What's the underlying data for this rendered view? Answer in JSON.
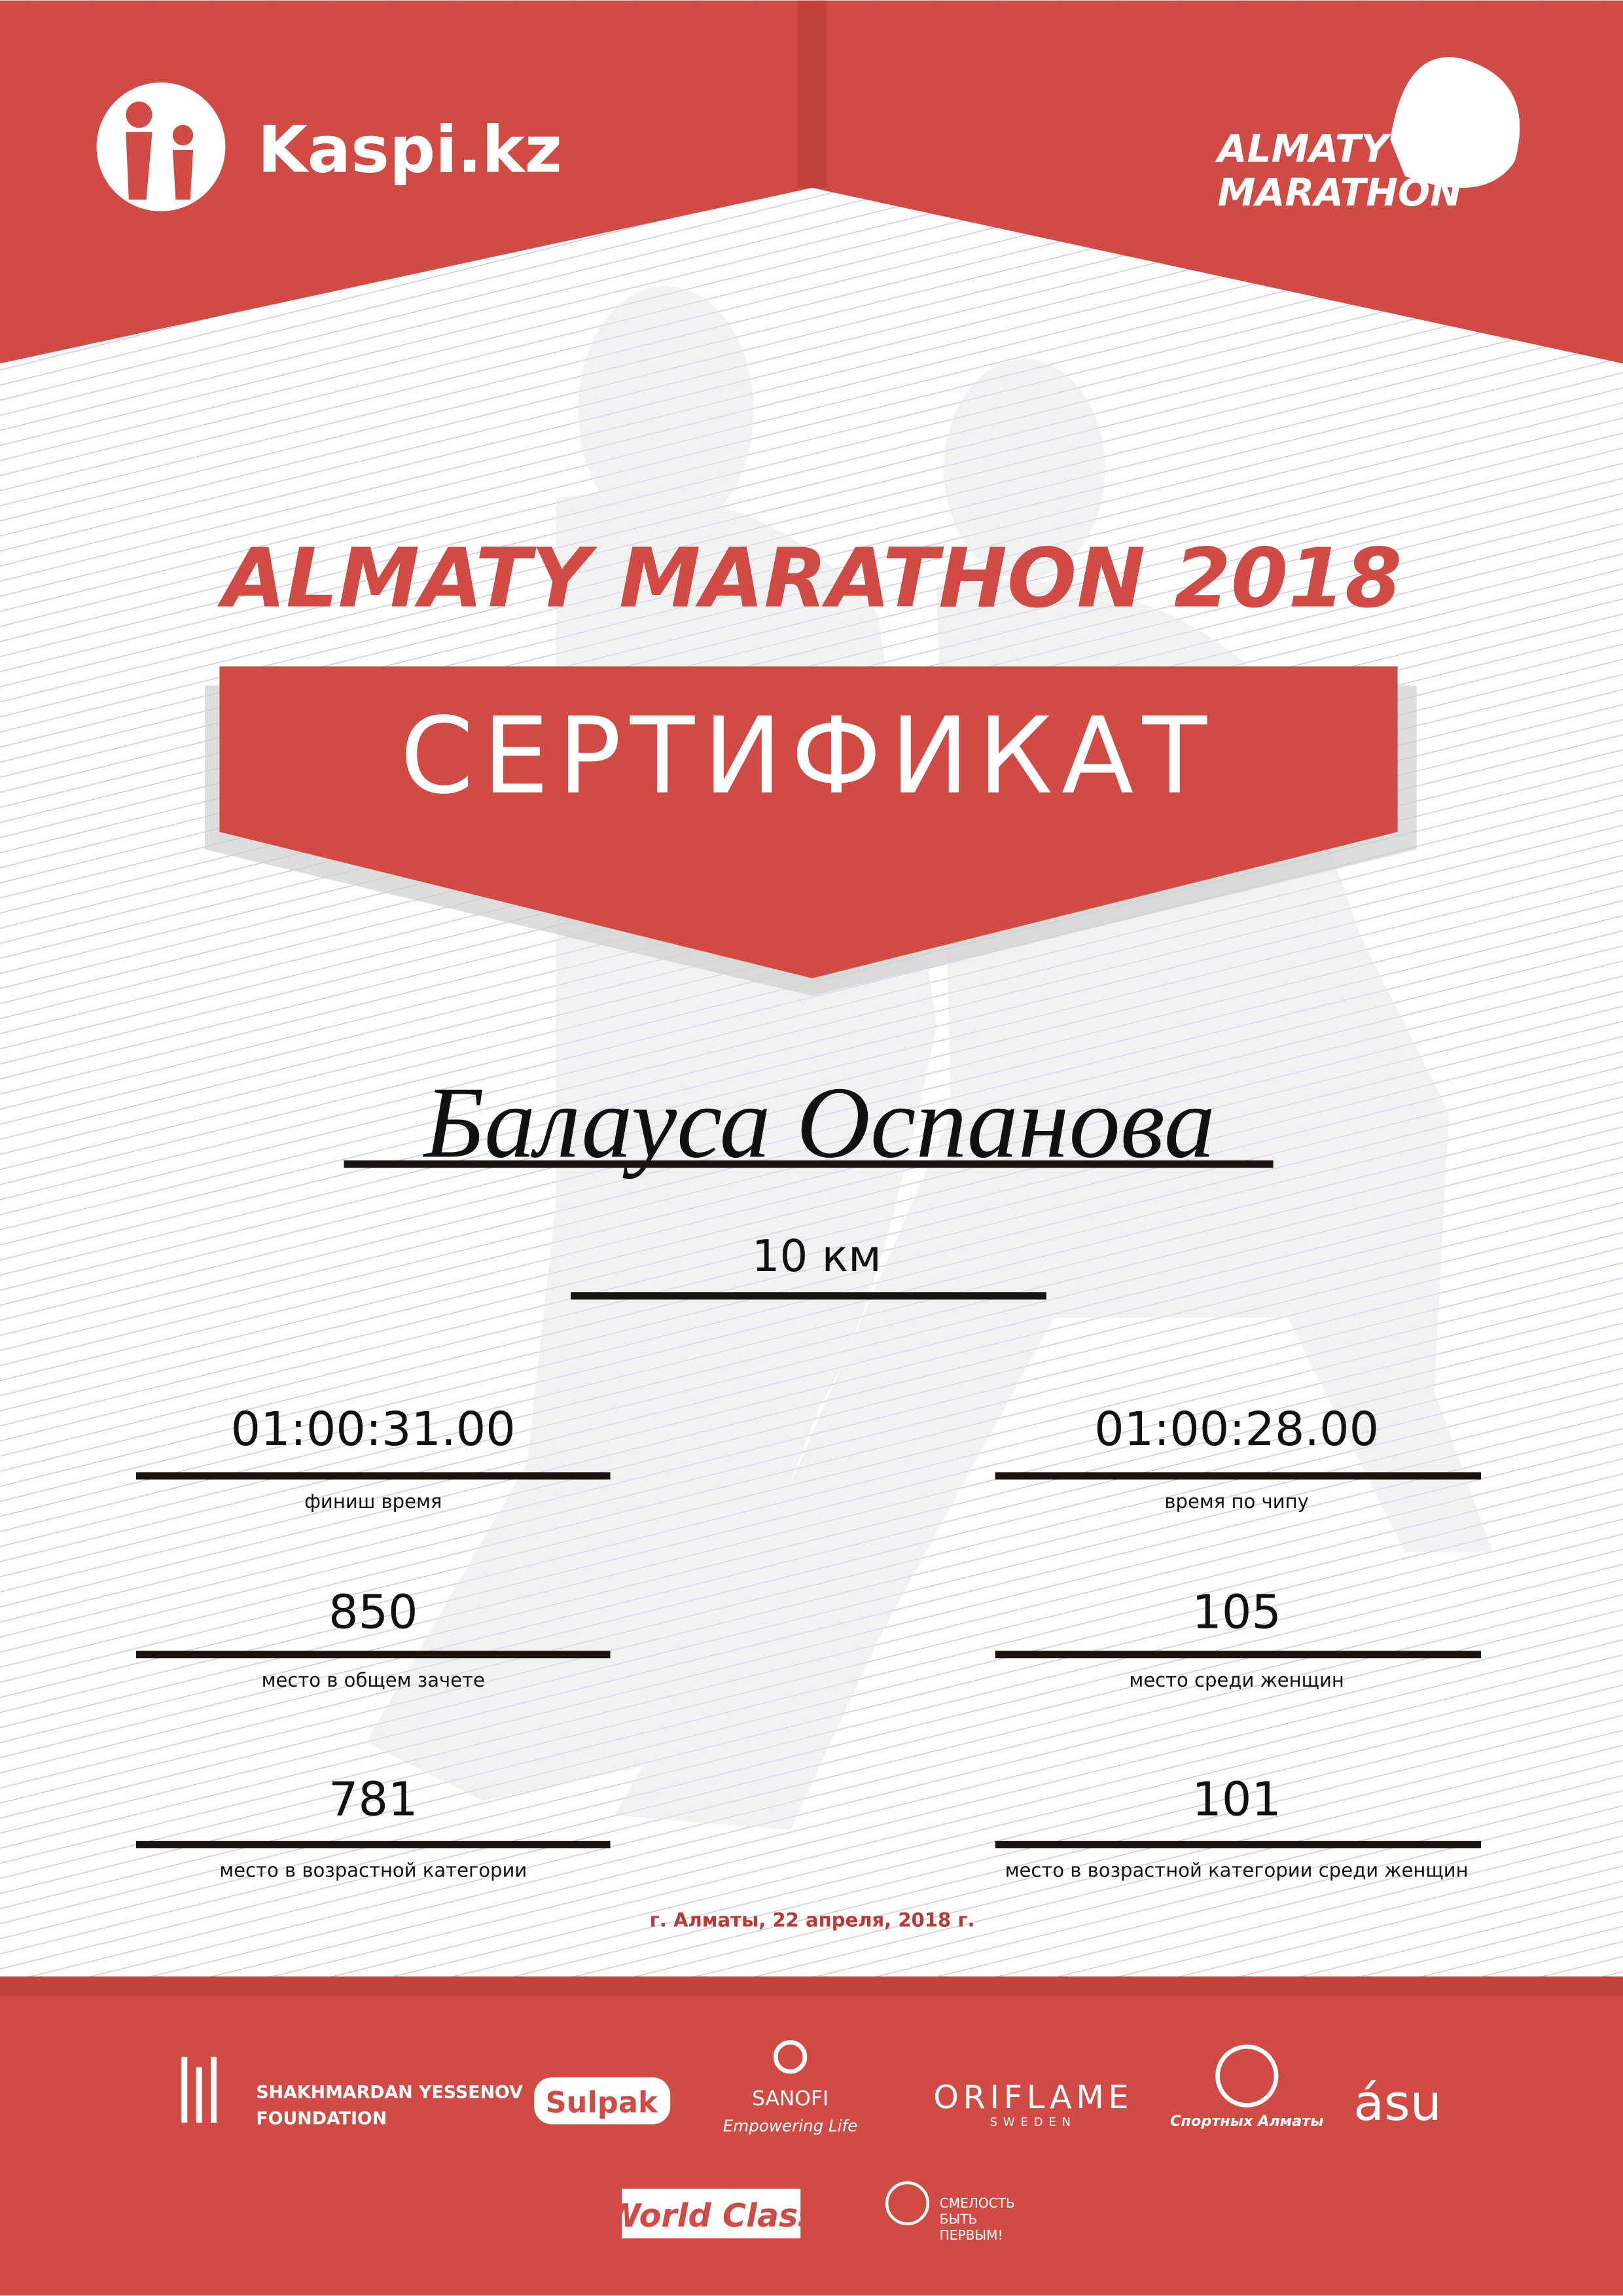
{
  "header": {
    "sponsor_logo": "Kaspi.kz",
    "event_logo": [
      "ALMATY",
      "MARATHON"
    ]
  },
  "title": "ALMATY MARATHON 2018",
  "banner": "СЕРТИФИКАТ",
  "participant": {
    "name": "Балауса Оспанова",
    "distance": "10 км"
  },
  "results": [
    {
      "value": "01:00:31.00",
      "label": "финиш время"
    },
    {
      "value": "01:00:28.00",
      "label": "время по чипу"
    },
    {
      "value": "850",
      "label": "место в общем зачете"
    },
    {
      "value": "105",
      "label": "место среди женщин"
    },
    {
      "value": "781",
      "label": "место в возрастной категории"
    },
    {
      "value": "101",
      "label": "место в возрастной категории среди женщин"
    }
  ],
  "place_date": "г. Алматы, 22 апреля, 2018 г.",
  "sponsors": {
    "yessenov": [
      "SHAKHMARDAN YESSENOV",
      "FOUNDATION"
    ],
    "sulpak": "Sulpak",
    "sanofi": [
      "SANOFI",
      "Empowering Life"
    ],
    "oriflame": [
      "ORIFLAME",
      "SWEDEN"
    ],
    "sport_almaty": "Спортных Алматы",
    "asu": "ásu",
    "world_class": "World Class",
    "fund": [
      "СМЕЛОСТЬ",
      "БЫТЬ",
      "ПЕРВЫМ!"
    ]
  }
}
